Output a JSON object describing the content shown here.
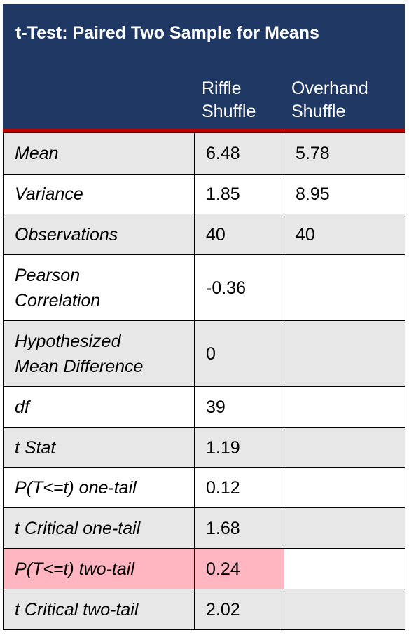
{
  "title": "t-Test: Paired Two Sample for Means",
  "columns": [
    {
      "line1": "Riffle",
      "line2": "Shuffle"
    },
    {
      "line1": "Overhand",
      "line2": "Shuffle"
    }
  ],
  "rows": [
    {
      "label_lines": [
        "Mean"
      ],
      "v1": "6.48",
      "v2": "5.78"
    },
    {
      "label_lines": [
        "Variance"
      ],
      "v1": "1.85",
      "v2": "8.95"
    },
    {
      "label_lines": [
        "Observations"
      ],
      "v1": "40",
      "v2": "40"
    },
    {
      "label_lines": [
        "Pearson",
        "Correlation"
      ],
      "v1": "-0.36",
      "v2": ""
    },
    {
      "label_lines": [
        "Hypothesized",
        "Mean Difference"
      ],
      "v1": "0",
      "v2": ""
    },
    {
      "label_lines": [
        "df"
      ],
      "v1": "39",
      "v2": ""
    },
    {
      "label_lines": [
        "t Stat"
      ],
      "v1": "1.19",
      "v2": ""
    },
    {
      "label_lines": [
        "P(T<=t) one-tail"
      ],
      "v1": "0.12",
      "v2": ""
    },
    {
      "label_lines": [
        "t Critical one-tail"
      ],
      "v1": "1.68",
      "v2": ""
    },
    {
      "label_lines": [
        "P(T<=t) two-tail"
      ],
      "v1": "0.24",
      "v2": "",
      "highlight": true
    },
    {
      "label_lines": [
        "t Critical two-tail"
      ],
      "v1": "2.02",
      "v2": ""
    }
  ],
  "colors": {
    "header_bg": "#1f3864",
    "header_rule": "#c00000",
    "row_shade": "#e7e7e7",
    "highlight": "#ffb6c1"
  }
}
